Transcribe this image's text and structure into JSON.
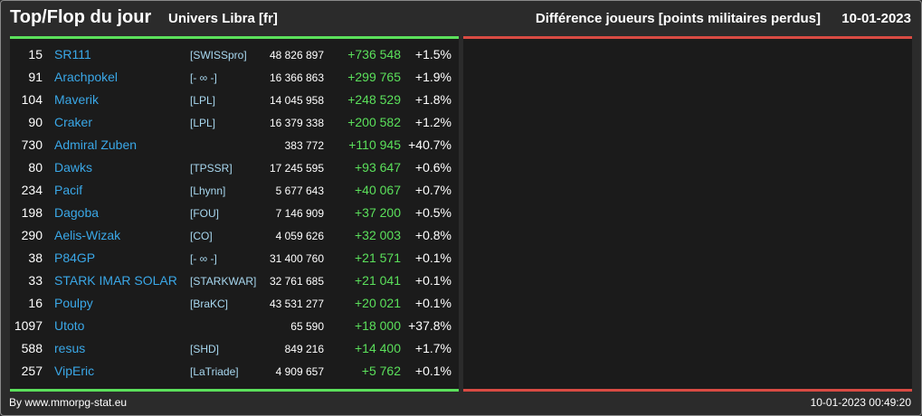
{
  "header": {
    "title": "Top/Flop du jour",
    "subtitle": "Univers Libra [fr]",
    "diff_title": "Différence joueurs [points militaires perdus]",
    "date": "10-01-2023"
  },
  "colors": {
    "positive": "#5be05b",
    "negative_bar": "#d94b43",
    "player_name": "#3aa8e8",
    "guild": "#a8d8f0"
  },
  "rows": [
    {
      "rank": "15",
      "name": "SR111",
      "guild": "[SWISSpro]",
      "points": "48 826 897",
      "delta": "+736 548",
      "pct": "+1.5%"
    },
    {
      "rank": "91",
      "name": "Arachpokel",
      "guild": "[- ∞ -]",
      "points": "16 366 863",
      "delta": "+299 765",
      "pct": "+1.9%"
    },
    {
      "rank": "104",
      "name": "Maverik",
      "guild": "[LPL]",
      "points": "14 045 958",
      "delta": "+248 529",
      "pct": "+1.8%"
    },
    {
      "rank": "90",
      "name": "Craker",
      "guild": "[LPL]",
      "points": "16 379 338",
      "delta": "+200 582",
      "pct": "+1.2%"
    },
    {
      "rank": "730",
      "name": "Admiral Zuben",
      "guild": "",
      "points": "383 772",
      "delta": "+110 945",
      "pct": "+40.7%"
    },
    {
      "rank": "80",
      "name": "Dawks",
      "guild": "[TPSSR]",
      "points": "17 245 595",
      "delta": "+93 647",
      "pct": "+0.6%"
    },
    {
      "rank": "234",
      "name": "Pacif",
      "guild": "[Lhynn]",
      "points": "5 677 643",
      "delta": "+40 067",
      "pct": "+0.7%"
    },
    {
      "rank": "198",
      "name": "Dagoba",
      "guild": "[FOU]",
      "points": "7 146 909",
      "delta": "+37 200",
      "pct": "+0.5%"
    },
    {
      "rank": "290",
      "name": "Aelis-Wizak",
      "guild": "[CO]",
      "points": "4 059 626",
      "delta": "+32 003",
      "pct": "+0.8%"
    },
    {
      "rank": "38",
      "name": "P84GP",
      "guild": "[- ∞ -]",
      "points": "31 400 760",
      "delta": "+21 571",
      "pct": "+0.1%"
    },
    {
      "rank": "33",
      "name": "STARK IMAR SOLAR",
      "guild": "[STARKWAR]",
      "points": "32 761 685",
      "delta": "+21 041",
      "pct": "+0.1%"
    },
    {
      "rank": "16",
      "name": "Poulpy",
      "guild": "[BraKC]",
      "points": "43 531 277",
      "delta": "+20 021",
      "pct": "+0.1%"
    },
    {
      "rank": "1097",
      "name": "Utoto",
      "guild": "",
      "points": "65 590",
      "delta": "+18 000",
      "pct": "+37.8%"
    },
    {
      "rank": "588",
      "name": "resus",
      "guild": "[SHD]",
      "points": "849 216",
      "delta": "+14 400",
      "pct": "+1.7%"
    },
    {
      "rank": "257",
      "name": "VipEric",
      "guild": "[LaTriade]",
      "points": "4 909 657",
      "delta": "+5 762",
      "pct": "+0.1%"
    }
  ],
  "footer": {
    "credit": "By www.mmorpg-stat.eu",
    "timestamp": "10-01-2023 00:49:20"
  }
}
